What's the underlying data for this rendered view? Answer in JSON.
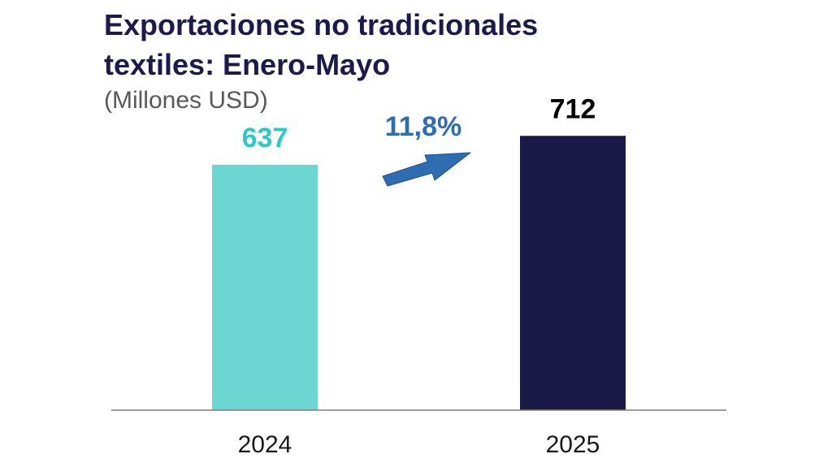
{
  "colors": {
    "title": "#1b1a4a",
    "subtitle": "#595959",
    "bar_2024": "#6cd6d3",
    "bar_2025": "#1b1a46",
    "label_2024": "#2ec8c6",
    "label_2025": "#000000",
    "arrow": "#2f6db3",
    "axis": "#7f7f7f"
  },
  "chart_data": {
    "type": "bar",
    "title": "Exportaciones no tradicionales textiles: Enero-Mayo",
    "title_lines": [
      "Exportaciones no tradicionales",
      "textiles: Enero-Mayo"
    ],
    "subtitle": "(Millones USD)",
    "categories": [
      "2024",
      "2025"
    ],
    "values": [
      637,
      712
    ],
    "value_labels": [
      "637",
      "712"
    ],
    "growth_label": "11,8%",
    "arrow_icon": "up-right-arrow-icon",
    "ylim": [
      0,
      780
    ],
    "grid": false,
    "legend": "none"
  }
}
